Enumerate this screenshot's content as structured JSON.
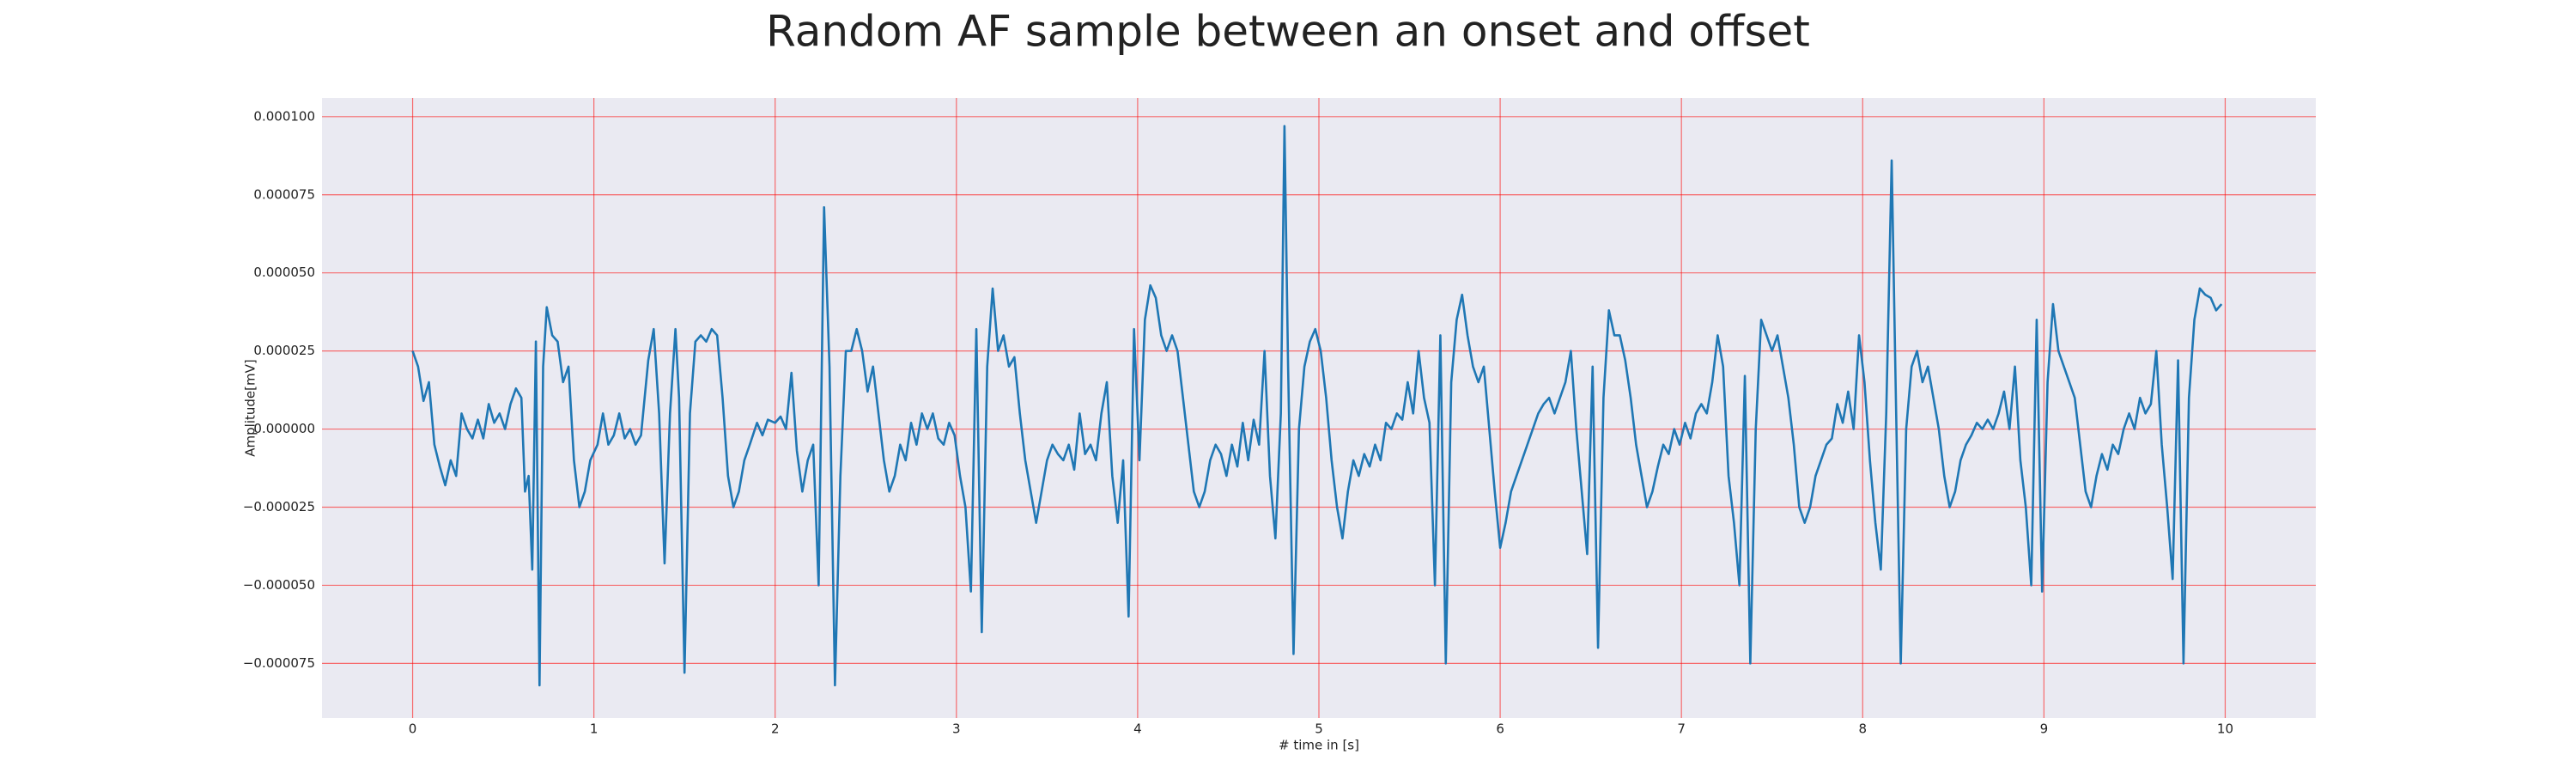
{
  "chart_data": {
    "type": "line",
    "title": "Random AF sample between an onset and offset",
    "xlabel": "# time in [s]",
    "ylabel": "Amplitude[mV]",
    "color": "#1f77b4",
    "grid": true,
    "xlim": [
      -0.5,
      10.5
    ],
    "ylim": [
      -9.25e-05,
      0.000106
    ],
    "xticks": [
      0,
      1,
      2,
      3,
      4,
      5,
      6,
      7,
      8,
      9,
      10
    ],
    "yticks": [
      {
        "value": -7.5e-05,
        "label": "−0.000075"
      },
      {
        "value": -5e-05,
        "label": "−0.000050"
      },
      {
        "value": -2.5e-05,
        "label": "−0.000025"
      },
      {
        "value": 0,
        "label": "0.000000"
      },
      {
        "value": 2.5e-05,
        "label": "0.000025"
      },
      {
        "value": 5e-05,
        "label": "0.000050"
      },
      {
        "value": 7.5e-05,
        "label": "0.000075"
      },
      {
        "value": 0.0001,
        "label": "0.000100"
      }
    ],
    "x": [
      0,
      0.03,
      0.06,
      0.09,
      0.12,
      0.15,
      0.18,
      0.21,
      0.24,
      0.27,
      0.3,
      0.33,
      0.36,
      0.39,
      0.42,
      0.45,
      0.48,
      0.51,
      0.54,
      0.57,
      0.6,
      0.62,
      0.64,
      0.66,
      0.68,
      0.7,
      0.72,
      0.74,
      0.77,
      0.8,
      0.83,
      0.86,
      0.89,
      0.92,
      0.95,
      0.98,
      1.02,
      1.05,
      1.08,
      1.11,
      1.14,
      1.17,
      1.2,
      1.23,
      1.26,
      1.3,
      1.33,
      1.36,
      1.39,
      1.42,
      1.45,
      1.47,
      1.5,
      1.53,
      1.56,
      1.59,
      1.62,
      1.65,
      1.68,
      1.71,
      1.74,
      1.77,
      1.8,
      1.83,
      1.86,
      1.9,
      1.93,
      1.96,
      2,
      2.03,
      2.06,
      2.09,
      2.12,
      2.15,
      2.18,
      2.21,
      2.24,
      2.27,
      2.3,
      2.33,
      2.36,
      2.39,
      2.42,
      2.45,
      2.48,
      2.51,
      2.54,
      2.57,
      2.6,
      2.63,
      2.66,
      2.69,
      2.72,
      2.75,
      2.78,
      2.81,
      2.84,
      2.87,
      2.9,
      2.93,
      2.96,
      2.99,
      3.02,
      3.05,
      3.08,
      3.11,
      3.14,
      3.17,
      3.2,
      3.23,
      3.26,
      3.29,
      3.32,
      3.35,
      3.38,
      3.41,
      3.44,
      3.47,
      3.5,
      3.53,
      3.56,
      3.59,
      3.62,
      3.65,
      3.68,
      3.71,
      3.74,
      3.77,
      3.8,
      3.83,
      3.86,
      3.89,
      3.92,
      3.95,
      3.98,
      4.01,
      4.04,
      4.07,
      4.1,
      4.13,
      4.16,
      4.19,
      4.22,
      4.25,
      4.28,
      4.31,
      4.34,
      4.37,
      4.4,
      4.43,
      4.46,
      4.49,
      4.52,
      4.55,
      4.58,
      4.61,
      4.64,
      4.67,
      4.7,
      4.73,
      4.76,
      4.79,
      4.81,
      4.83,
      4.86,
      4.89,
      4.92,
      4.95,
      4.98,
      5.01,
      5.04,
      5.07,
      5.1,
      5.13,
      5.16,
      5.19,
      5.22,
      5.25,
      5.28,
      5.31,
      5.34,
      5.37,
      5.4,
      5.43,
      5.46,
      5.49,
      5.52,
      5.55,
      5.58,
      5.61,
      5.64,
      5.67,
      5.7,
      5.73,
      5.76,
      5.79,
      5.82,
      5.85,
      5.88,
      5.91,
      5.94,
      5.97,
      6,
      6.03,
      6.06,
      6.09,
      6.12,
      6.15,
      6.18,
      6.21,
      6.24,
      6.27,
      6.3,
      6.33,
      6.36,
      6.39,
      6.42,
      6.45,
      6.48,
      6.51,
      6.54,
      6.57,
      6.6,
      6.63,
      6.66,
      6.69,
      6.72,
      6.75,
      6.78,
      6.81,
      6.84,
      6.87,
      6.9,
      6.93,
      6.96,
      6.99,
      7.02,
      7.05,
      7.08,
      7.11,
      7.14,
      7.17,
      7.2,
      7.23,
      7.26,
      7.29,
      7.32,
      7.35,
      7.38,
      7.41,
      7.44,
      7.47,
      7.5,
      7.53,
      7.56,
      7.59,
      7.62,
      7.65,
      7.68,
      7.71,
      7.74,
      7.77,
      7.8,
      7.83,
      7.86,
      7.89,
      7.92,
      7.95,
      7.98,
      8.01,
      8.04,
      8.07,
      8.1,
      8.13,
      8.16,
      8.18,
      8.21,
      8.24,
      8.27,
      8.3,
      8.33,
      8.36,
      8.39,
      8.42,
      8.45,
      8.48,
      8.51,
      8.54,
      8.57,
      8.6,
      8.63,
      8.66,
      8.69,
      8.72,
      8.75,
      8.78,
      8.81,
      8.84,
      8.87,
      8.9,
      8.93,
      8.96,
      8.99,
      9.02,
      9.05,
      9.08,
      9.11,
      9.14,
      9.17,
      9.2,
      9.23,
      9.26,
      9.29,
      9.32,
      9.35,
      9.38,
      9.41,
      9.44,
      9.47,
      9.5,
      9.53,
      9.56,
      9.59,
      9.62,
      9.65,
      9.68,
      9.71,
      9.74,
      9.77,
      9.8,
      9.83,
      9.86,
      9.89,
      9.92,
      9.95,
      9.98
    ],
    "values": [
      2.5e-05,
      2e-05,
      9e-06,
      1.5e-05,
      -5e-06,
      -1.2e-05,
      -1.8e-05,
      -1e-05,
      -1.5e-05,
      5e-06,
      0,
      -3e-06,
      3e-06,
      -3e-06,
      8e-06,
      2e-06,
      5e-06,
      0,
      8e-06,
      1.3e-05,
      1e-05,
      -2e-05,
      -1.5e-05,
      -4.5e-05,
      2.8e-05,
      -8.2e-05,
      2e-05,
      3.9e-05,
      3e-05,
      2.8e-05,
      1.5e-05,
      2e-05,
      -1e-05,
      -2.5e-05,
      -2e-05,
      -1e-05,
      -5e-06,
      5e-06,
      -5e-06,
      -2e-06,
      5e-06,
      -3e-06,
      0,
      -5e-06,
      -2e-06,
      2.2e-05,
      3.2e-05,
      5e-06,
      -4.3e-05,
      5e-06,
      3.2e-05,
      1e-05,
      -7.8e-05,
      5e-06,
      2.8e-05,
      3e-05,
      2.8e-05,
      3.2e-05,
      3e-05,
      1e-05,
      -1.5e-05,
      -2.5e-05,
      -2e-05,
      -1e-05,
      -5e-06,
      2e-06,
      -2e-06,
      3e-06,
      2e-06,
      4e-06,
      0,
      1.8e-05,
      -7e-06,
      -2e-05,
      -1e-05,
      -5e-06,
      -5e-05,
      7.1e-05,
      2e-05,
      -8.2e-05,
      -1.5e-05,
      2.5e-05,
      2.5e-05,
      3.2e-05,
      2.5e-05,
      1.2e-05,
      2e-05,
      5e-06,
      -1e-05,
      -2e-05,
      -1.5e-05,
      -5e-06,
      -1e-05,
      2e-06,
      -5e-06,
      5e-06,
      0,
      5e-06,
      -3e-06,
      -5e-06,
      2e-06,
      -2e-06,
      -1.5e-05,
      -2.5e-05,
      -5.2e-05,
      3.2e-05,
      -6.5e-05,
      2e-05,
      4.5e-05,
      2.5e-05,
      3e-05,
      2e-05,
      2.3e-05,
      5e-06,
      -1e-05,
      -2e-05,
      -3e-05,
      -2e-05,
      -1e-05,
      -5e-06,
      -8e-06,
      -1e-05,
      -5e-06,
      -1.3e-05,
      5e-06,
      -8e-06,
      -5e-06,
      -1e-05,
      5e-06,
      1.5e-05,
      -1.5e-05,
      -3e-05,
      -1e-05,
      -6e-05,
      3.2e-05,
      -1e-05,
      3.5e-05,
      4.6e-05,
      4.2e-05,
      3e-05,
      2.5e-05,
      3e-05,
      2.5e-05,
      1e-05,
      -5e-06,
      -2e-05,
      -2.5e-05,
      -2e-05,
      -1e-05,
      -5e-06,
      -8e-06,
      -1.5e-05,
      -5e-06,
      -1.2e-05,
      2e-06,
      -1e-05,
      3e-06,
      -5e-06,
      2.5e-05,
      -1.5e-05,
      -3.5e-05,
      5e-06,
      9.7e-05,
      2e-05,
      -7.2e-05,
      0,
      2e-05,
      2.8e-05,
      3.2e-05,
      2.5e-05,
      1e-05,
      -1e-05,
      -2.5e-05,
      -3.5e-05,
      -2e-05,
      -1e-05,
      -1.5e-05,
      -8e-06,
      -1.2e-05,
      -5e-06,
      -1e-05,
      2e-06,
      0,
      5e-06,
      3e-06,
      1.5e-05,
      5e-06,
      2.5e-05,
      1e-05,
      2e-06,
      -5e-05,
      3e-05,
      -7.5e-05,
      1.5e-05,
      3.5e-05,
      4.3e-05,
      3e-05,
      2e-05,
      1.5e-05,
      2e-05,
      0,
      -2e-05,
      -3.8e-05,
      -3e-05,
      -2e-05,
      -1.5e-05,
      -1e-05,
      -5e-06,
      0,
      5e-06,
      8e-06,
      1e-05,
      5e-06,
      1e-05,
      1.5e-05,
      2.5e-05,
      0,
      -2e-05,
      -4e-05,
      2e-05,
      -7e-05,
      1e-05,
      3.8e-05,
      3e-05,
      3e-05,
      2.2e-05,
      1e-05,
      -5e-06,
      -1.5e-05,
      -2.5e-05,
      -2e-05,
      -1.2e-05,
      -5e-06,
      -8e-06,
      0,
      -5e-06,
      2e-06,
      -3e-06,
      5e-06,
      8e-06,
      5e-06,
      1.5e-05,
      3e-05,
      2e-05,
      -1.5e-05,
      -3e-05,
      -5e-05,
      1.7e-05,
      -7.5e-05,
      0,
      3.5e-05,
      3e-05,
      2.5e-05,
      3e-05,
      2e-05,
      1e-05,
      -5e-06,
      -2.5e-05,
      -3e-05,
      -2.5e-05,
      -1.5e-05,
      -1e-05,
      -5e-06,
      -3e-06,
      8e-06,
      2e-06,
      1.2e-05,
      0,
      3e-05,
      1.5e-05,
      -1e-05,
      -3e-05,
      -4.5e-05,
      5e-06,
      8.6e-05,
      2e-05,
      -7.5e-05,
      0,
      2e-05,
      2.5e-05,
      1.5e-05,
      2e-05,
      1e-05,
      0,
      -1.5e-05,
      -2.5e-05,
      -2e-05,
      -1e-05,
      -5e-06,
      -2e-06,
      2e-06,
      0,
      3e-06,
      0,
      5e-06,
      1.2e-05,
      0,
      2e-05,
      -1e-05,
      -2.5e-05,
      -5e-05,
      3.5e-05,
      -5.2e-05,
      1.5e-05,
      4e-05,
      2.5e-05,
      2e-05,
      1.5e-05,
      1e-05,
      -5e-06,
      -2e-05,
      -2.5e-05,
      -1.5e-05,
      -8e-06,
      -1.3e-05,
      -5e-06,
      -8e-06,
      0,
      5e-06,
      0,
      1e-05,
      5e-06,
      8e-06,
      2.5e-05,
      -5e-06,
      -2.5e-05,
      -4.8e-05,
      2.2e-05,
      -7.5e-05,
      1e-05,
      3.5e-05,
      4.5e-05,
      4.3e-05,
      4.2e-05,
      3.8e-05,
      4e-05
    ]
  }
}
